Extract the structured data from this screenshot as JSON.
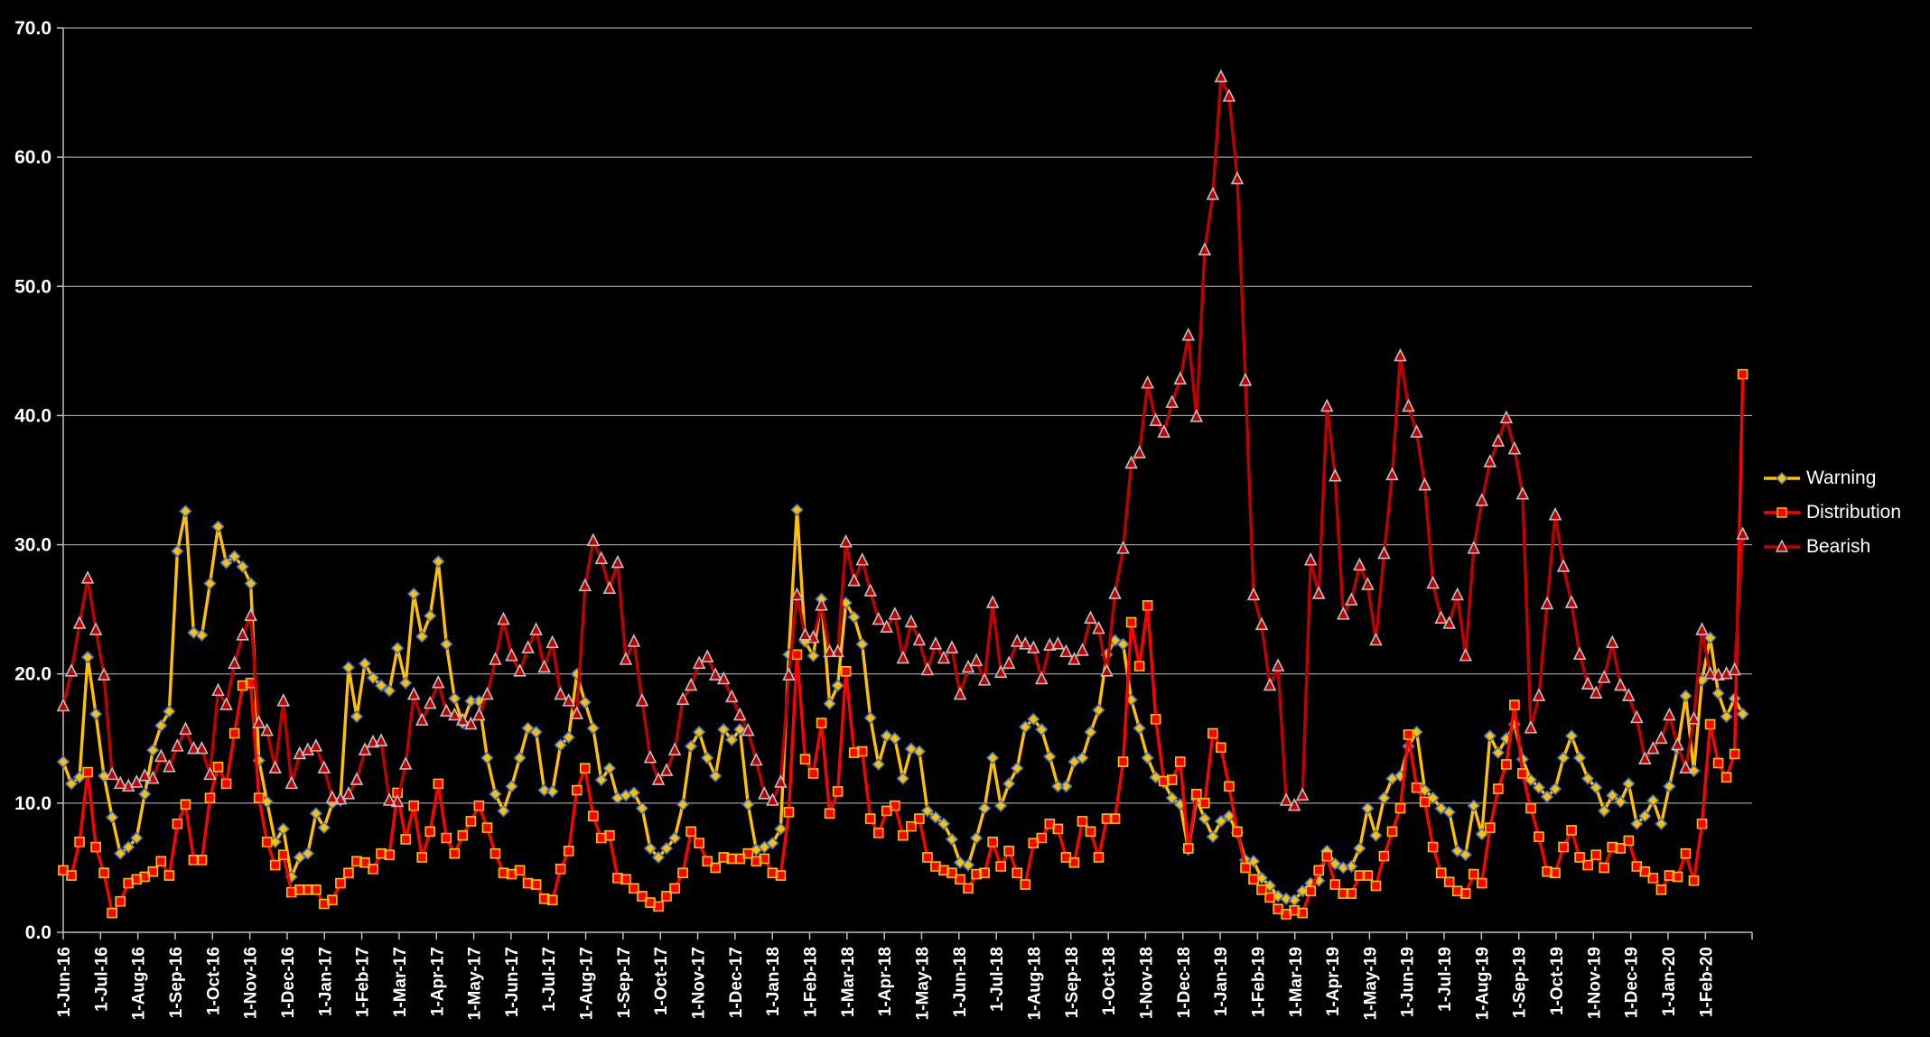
{
  "page": {
    "background": "#000000",
    "text_color": "#FFFFFF",
    "gridline_color": "#BFBFBF"
  },
  "legend": {
    "position": "right",
    "entries": [
      "Warning",
      "Distribution",
      "Bearish"
    ]
  },
  "chart_data": {
    "type": "line",
    "title": "",
    "xlabel": "",
    "ylabel": "",
    "grid": true,
    "ylim": [
      0,
      70
    ],
    "y_tick_labels": [
      "0.0",
      "10.0",
      "20.0",
      "30.0",
      "40.0",
      "50.0",
      "60.0",
      "70.0"
    ],
    "x_start": "1-Jun-16",
    "x_interval": "weekly",
    "x_axis": {
      "months_axis_span": 45.25,
      "months_data_span": 45.0,
      "tick_labels": [
        "1-Jun-16",
        "1-Jul-16",
        "1-Aug-16",
        "1-Sep-16",
        "1-Oct-16",
        "1-Nov-16",
        "1-Dec-16",
        "1-Jan-17",
        "1-Feb-17",
        "1-Mar-17",
        "1-Apr-17",
        "1-May-17",
        "1-Jun-17",
        "1-Jul-17",
        "1-Aug-17",
        "1-Sep-17",
        "1-Oct-17",
        "1-Nov-17",
        "1-Dec-17",
        "1-Jan-18",
        "1-Feb-18",
        "1-Mar-18",
        "1-Apr-18",
        "1-May-18",
        "1-Jun-18",
        "1-Jul-18",
        "1-Aug-18",
        "1-Sep-18",
        "1-Oct-18",
        "1-Nov-18",
        "1-Dec-18",
        "1-Jan-19",
        "1-Feb-19",
        "1-Mar-19",
        "1-Apr-19",
        "1-May-19",
        "1-Jun-19",
        "1-Jul-19",
        "1-Aug-19",
        "1-Sep-19",
        "1-Oct-19",
        "1-Nov-19",
        "1-Dec-19",
        "1-Jan-20",
        "1-Feb-20"
      ]
    },
    "series": [
      {
        "name": "Warning",
        "color": "#FFC000",
        "marker": "diamond",
        "marker_outline": "#4472C4",
        "values": [
          13.2,
          11.5,
          12.0,
          21.3,
          16.9,
          12.1,
          8.9,
          6.1,
          6.6,
          7.3,
          10.7,
          14.1,
          16.0,
          17.1,
          29.5,
          32.6,
          23.2,
          23.0,
          27.0,
          31.4,
          28.6,
          29.1,
          28.3,
          27.0,
          13.3,
          10.1,
          7.0,
          8.0,
          4.3,
          5.8,
          6.1,
          9.2,
          8.1,
          10.0,
          10.2,
          20.5,
          16.7,
          20.8,
          19.7,
          19.1,
          18.7,
          22.0,
          19.3,
          26.2,
          22.9,
          24.5,
          28.7,
          22.3,
          18.1,
          16.2,
          17.9,
          17.9,
          13.5,
          10.7,
          9.4,
          11.3,
          13.5,
          15.8,
          15.5,
          11.0,
          10.9,
          14.5,
          15.1,
          20.0,
          17.8,
          15.8,
          11.8,
          12.7,
          10.4,
          10.6,
          10.8,
          9.6,
          6.5,
          5.8,
          6.5,
          7.3,
          9.9,
          14.4,
          15.5,
          13.5,
          12.1,
          15.7,
          14.9,
          15.7,
          9.9,
          6.4,
          6.6,
          6.9,
          8.0,
          21.5,
          32.7,
          22.5,
          21.4,
          25.8,
          17.7,
          19.1,
          25.5,
          24.4,
          22.3,
          16.6,
          13.0,
          15.2,
          15.0,
          11.9,
          14.2,
          14.0,
          9.4,
          8.9,
          8.4,
          7.2,
          5.4,
          5.2,
          7.3,
          9.6,
          13.5,
          9.8,
          11.5,
          12.7,
          15.9,
          16.5,
          15.7,
          13.6,
          11.3,
          11.3,
          13.2,
          13.5,
          15.5,
          17.2,
          21.5,
          22.6,
          22.3,
          18.0,
          15.8,
          13.5,
          12.0,
          11.6,
          10.4,
          9.9,
          6.4,
          10.3,
          8.8,
          7.4,
          8.6,
          9.0,
          7.7,
          5.6,
          5.5,
          4.2,
          3.6,
          2.8,
          2.6,
          2.5,
          3.2,
          3.8,
          4.0,
          6.3,
          5.3,
          5.0,
          5.1,
          6.5,
          9.6,
          7.5,
          10.4,
          11.9,
          12.1,
          14.4,
          15.5,
          11.0,
          10.4,
          9.6,
          9.3,
          6.3,
          6.0,
          9.8,
          7.6,
          15.2,
          13.9,
          15.0,
          16.1,
          13.4,
          11.8,
          11.2,
          10.5,
          11.1,
          13.5,
          15.2,
          13.5,
          11.9,
          11.2,
          9.4,
          10.6,
          10.1,
          11.5,
          8.4,
          9.0,
          10.2,
          8.4,
          11.3,
          14.2,
          18.3,
          12.5,
          19.5,
          22.8,
          18.5,
          16.7,
          18.1,
          16.9
        ]
      },
      {
        "name": "Distribution",
        "color": "#FF0000",
        "marker": "square",
        "marker_outline": "#FFC000",
        "values": [
          4.8,
          4.4,
          7.0,
          12.4,
          6.6,
          4.6,
          1.5,
          2.4,
          3.8,
          4.1,
          4.3,
          4.7,
          5.5,
          4.4,
          8.4,
          9.9,
          5.6,
          5.6,
          10.4,
          12.8,
          11.5,
          15.4,
          19.1,
          19.3,
          10.4,
          7.0,
          5.2,
          6.0,
          3.1,
          3.3,
          3.3,
          3.3,
          2.2,
          2.5,
          3.8,
          4.6,
          5.5,
          5.4,
          4.9,
          6.1,
          6.0,
          10.8,
          7.2,
          9.8,
          5.8,
          7.8,
          11.5,
          7.3,
          6.1,
          7.5,
          8.6,
          9.8,
          8.1,
          6.1,
          4.6,
          4.5,
          4.8,
          3.8,
          3.7,
          2.6,
          2.5,
          4.9,
          6.3,
          11.0,
          12.7,
          9.0,
          7.3,
          7.5,
          4.2,
          4.1,
          3.4,
          2.8,
          2.3,
          2.0,
          2.8,
          3.4,
          4.6,
          7.8,
          6.9,
          5.5,
          5.0,
          5.8,
          5.7,
          5.7,
          6.1,
          5.5,
          5.7,
          4.6,
          4.4,
          9.3,
          21.5,
          13.4,
          12.3,
          16.2,
          9.2,
          10.9,
          20.2,
          13.9,
          14.0,
          8.8,
          7.7,
          9.4,
          9.8,
          7.5,
          8.2,
          8.8,
          5.8,
          5.1,
          4.8,
          4.6,
          4.1,
          3.4,
          4.5,
          4.6,
          7.0,
          5.1,
          6.3,
          4.6,
          3.7,
          6.9,
          7.3,
          8.4,
          8.0,
          5.8,
          5.4,
          8.6,
          7.8,
          5.8,
          8.8,
          8.8,
          13.2,
          24.0,
          20.6,
          25.3,
          16.5,
          11.7,
          11.8,
          13.2,
          6.5,
          10.7,
          10.0,
          15.4,
          14.3,
          11.3,
          7.8,
          5.0,
          4.1,
          3.3,
          2.7,
          1.8,
          1.4,
          1.7,
          1.5,
          3.2,
          4.8,
          5.9,
          3.7,
          3.0,
          3.0,
          4.4,
          4.4,
          3.6,
          5.9,
          7.8,
          9.6,
          15.3,
          11.2,
          10.1,
          6.6,
          4.6,
          3.9,
          3.2,
          3.0,
          4.5,
          3.8,
          8.1,
          11.1,
          13.0,
          17.6,
          12.3,
          9.6,
          7.4,
          4.7,
          4.6,
          6.6,
          7.9,
          5.8,
          5.2,
          6.0,
          5.0,
          6.6,
          6.5,
          7.1,
          5.1,
          4.7,
          4.2,
          3.3,
          4.4,
          4.3,
          6.1,
          4.0,
          8.4,
          16.1,
          13.1,
          12.0,
          13.8,
          43.2
        ]
      },
      {
        "name": "Bearish",
        "color": "#C00000",
        "marker": "triangle",
        "marker_outline": "#BFBFBF",
        "values": [
          17.5,
          20.2,
          23.9,
          27.4,
          23.4,
          19.9,
          12.2,
          11.5,
          11.3,
          11.6,
          12.1,
          11.9,
          13.6,
          12.8,
          14.4,
          15.7,
          14.2,
          14.2,
          12.2,
          18.7,
          17.6,
          20.8,
          23.0,
          24.5,
          16.2,
          15.6,
          12.7,
          17.9,
          11.5,
          13.8,
          14.1,
          14.4,
          12.7,
          10.4,
          10.3,
          10.7,
          11.8,
          14.1,
          14.7,
          14.8,
          10.2,
          10.1,
          13.0,
          18.4,
          16.4,
          17.7,
          19.3,
          17.1,
          16.8,
          16.4,
          16.1,
          16.8,
          18.4,
          21.1,
          24.2,
          21.4,
          20.2,
          22.0,
          23.4,
          20.5,
          22.4,
          18.4,
          17.9,
          16.9,
          26.8,
          30.3,
          28.9,
          26.6,
          28.6,
          21.1,
          22.5,
          17.9,
          13.5,
          11.8,
          12.5,
          14.1,
          18.0,
          19.1,
          20.8,
          21.3,
          19.9,
          19.6,
          18.2,
          16.8,
          15.6,
          13.3,
          10.7,
          10.2,
          11.6,
          19.9,
          26.1,
          23.0,
          22.8,
          25.3,
          21.7,
          21.7,
          30.2,
          27.2,
          28.8,
          26.4,
          24.2,
          23.6,
          24.6,
          21.2,
          24.0,
          22.6,
          20.3,
          22.3,
          21.2,
          22.0,
          18.4,
          20.5,
          21.0,
          19.5,
          25.5,
          20.1,
          20.8,
          22.5,
          22.3,
          22.0,
          19.6,
          22.2,
          22.3,
          21.7,
          21.1,
          21.8,
          24.3,
          23.5,
          20.2,
          26.2,
          29.7,
          36.3,
          37.1,
          42.5,
          39.6,
          38.7,
          41.0,
          42.8,
          46.2,
          39.9,
          52.8,
          57.1,
          66.2,
          64.7,
          58.3,
          42.7,
          26.1,
          23.8,
          19.1,
          20.6,
          10.2,
          9.8,
          10.6,
          28.8,
          26.2,
          40.7,
          35.3,
          24.6,
          25.7,
          28.4,
          26.9,
          22.6,
          29.3,
          35.4,
          44.6,
          40.7,
          38.7,
          34.6,
          27.0,
          24.3,
          23.9,
          26.1,
          21.4,
          29.7,
          33.4,
          36.4,
          38.0,
          39.8,
          37.4,
          33.9,
          15.8,
          18.3,
          25.4,
          32.3,
          28.3,
          25.5,
          21.5,
          19.2,
          18.5,
          19.7,
          22.4,
          19.1,
          18.3,
          16.6,
          13.4,
          14.2,
          15.0,
          16.8,
          14.5,
          12.7,
          16.5,
          23.4,
          20.0,
          19.9,
          20.0,
          20.3,
          30.8
        ]
      }
    ]
  }
}
